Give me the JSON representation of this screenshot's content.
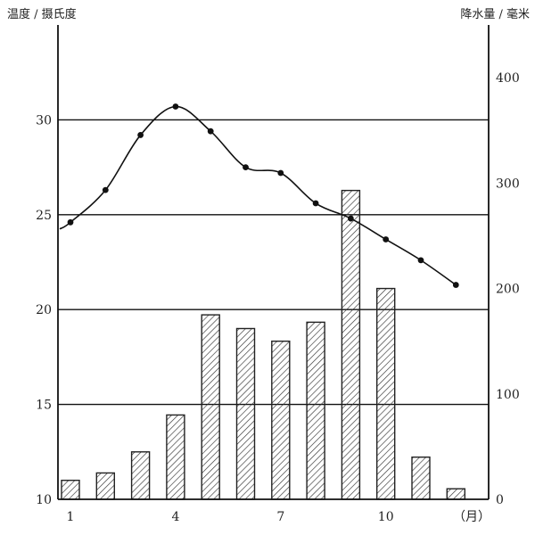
{
  "chart_data": {
    "type": "bar+line",
    "title": "",
    "ylabel_left": "温度 / 摄氏度",
    "ylabel_right": "降水量 / 毫米",
    "xunit": "（月）",
    "x_tick_labels": [
      "1",
      "4",
      "7",
      "10"
    ],
    "x": [
      1,
      2,
      3,
      4,
      5,
      6,
      7,
      8,
      9,
      10,
      11,
      12
    ],
    "temperature": {
      "axis": "left",
      "ylim": [
        10,
        35
      ],
      "ticks": [
        10,
        15,
        20,
        25,
        30
      ],
      "values": [
        24.6,
        26.3,
        29.2,
        30.7,
        29.4,
        27.5,
        27.2,
        25.6,
        24.8,
        23.7,
        22.6,
        21.3
      ]
    },
    "precipitation": {
      "axis": "right",
      "ylim": [
        0,
        450
      ],
      "ticks": [
        0,
        100,
        200,
        300,
        400
      ],
      "values": [
        18,
        25,
        45,
        80,
        175,
        162,
        150,
        168,
        293,
        200,
        40,
        10
      ]
    },
    "gridlines_left": [
      15,
      20,
      25,
      30
    ],
    "grid": true,
    "colors": {
      "line": "#111111",
      "bar_stroke": "#222222",
      "grid": "#111111"
    }
  }
}
